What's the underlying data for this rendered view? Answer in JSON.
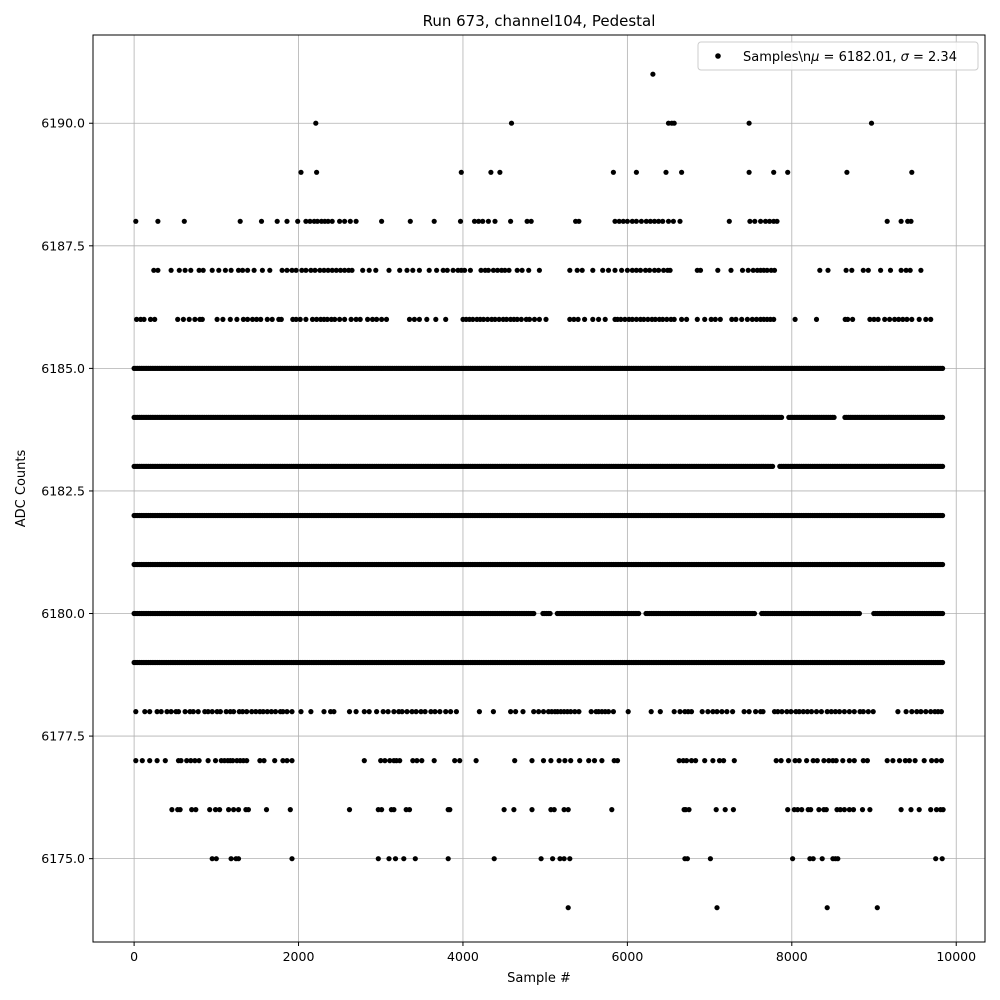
{
  "chart_data": {
    "type": "scatter",
    "title": "Run 673, channel104, Pedestal",
    "xlabel": "Sample #",
    "ylabel": "ADC Counts",
    "xlim": [
      -500,
      10350
    ],
    "ylim": [
      6173.3,
      6191.8
    ],
    "xticks": [
      0,
      2000,
      4000,
      6000,
      8000,
      10000
    ],
    "xtick_labels": [
      "0",
      "2000",
      "4000",
      "6000",
      "8000",
      "10000"
    ],
    "yticks": [
      6175.0,
      6177.5,
      6180.0,
      6182.5,
      6185.0,
      6187.5,
      6190.0
    ],
    "ytick_labels": [
      "6175.0",
      "6177.5",
      "6180.0",
      "6182.5",
      "6185.0",
      "6187.5",
      "6190.0"
    ],
    "grid": true,
    "legend_position": "top-right",
    "marker_color": "#000000",
    "grid_color": "#b0b0b0",
    "series": [
      {
        "name": "Samples\\n$\\mu$ = 6182.01, $\\sigma$ = 2.34",
        "legend_prefix": "Samples\\n",
        "legend_mu": "μ",
        "legend_mid": " = 6182.01, ",
        "legend_sigma": "σ",
        "legend_suffix": " = 2.34",
        "n_samples": 9850,
        "x_range": [
          0,
          9849
        ],
        "mean": 6182.01,
        "std": 2.34,
        "level_x_samples": {
          "6174": [
            5280,
            7090,
            8430,
            9040
          ],
          "6175": [
            950,
            1000,
            1180,
            1240,
            1270,
            1920,
            2970,
            3100,
            3180,
            3280,
            3420,
            3820,
            4380,
            4950,
            5090,
            5180,
            5230,
            5300,
            6700,
            6730,
            7010,
            8010,
            8220,
            8260,
            8370,
            8500,
            8530,
            8560,
            9750,
            9830
          ],
          "6176": [
            460,
            530,
            560,
            700,
            750,
            920,
            990,
            1040,
            1150,
            1210,
            1270,
            1360,
            1390,
            1610,
            1900,
            2620,
            2970,
            3010,
            3130,
            3160,
            3310,
            3350,
            3820,
            3840,
            4500,
            4620,
            4840,
            5070,
            5110,
            5230,
            5280,
            5810,
            6690,
            6710,
            6750,
            7080,
            7190,
            7290,
            7950,
            8030,
            8070,
            8120,
            8200,
            8230,
            8330,
            8390,
            8420,
            8550,
            8590,
            8640,
            8700,
            8750,
            8860,
            8950,
            9330,
            9450,
            9550,
            9690,
            9760,
            9810,
            9840
          ],
          "6177": [
            20,
            100,
            190,
            280,
            380,
            540,
            570,
            640,
            690,
            740,
            790,
            900,
            990,
            1060,
            1100,
            1140,
            1170,
            1200,
            1250,
            1290,
            1330,
            1370,
            1530,
            1580,
            1710,
            1810,
            1860,
            1920,
            2800,
            3000,
            3050,
            3110,
            3160,
            3190,
            3230,
            3390,
            3440,
            3500,
            3650,
            3900,
            3960,
            4160,
            4630,
            4840,
            4980,
            5070,
            5170,
            5240,
            5310,
            5420,
            5530,
            5600,
            5690,
            5840,
            5880,
            6630,
            6680,
            6720,
            6780,
            6830,
            6940,
            7040,
            7120,
            7170,
            7300,
            7810,
            7870,
            7960,
            8040,
            8090,
            8180,
            8260,
            8310,
            8390,
            8450,
            8500,
            8540,
            8620,
            8700,
            8760,
            8870,
            8920,
            9160,
            9230,
            9310,
            9380,
            9430,
            9500,
            9610,
            9700,
            9760,
            9820
          ],
          "6178": [
            20,
            130,
            190,
            280,
            330,
            400,
            450,
            510,
            540,
            620,
            680,
            720,
            780,
            860,
            900,
            950,
            1010,
            1050,
            1120,
            1170,
            1210,
            1280,
            1320,
            1370,
            1430,
            1480,
            1530,
            1570,
            1620,
            1670,
            1720,
            1780,
            1810,
            1860,
            1920,
            2030,
            2150,
            2310,
            2390,
            2430,
            2620,
            2700,
            2800,
            2860,
            2950,
            3030,
            3090,
            3160,
            3220,
            3260,
            3320,
            3380,
            3430,
            3490,
            3540,
            3610,
            3660,
            3720,
            3790,
            3850,
            3920,
            4200,
            4370,
            4580,
            4640,
            4730,
            4860,
            4920,
            4980,
            5040,
            5080,
            5120,
            5150,
            5190,
            5230,
            5270,
            5310,
            5360,
            5410,
            5560,
            5620,
            5650,
            5690,
            5730,
            5770,
            5830,
            6010,
            6290,
            6400,
            6570,
            6640,
            6700,
            6740,
            6780,
            6910,
            6980,
            7040,
            7090,
            7150,
            7210,
            7280,
            7420,
            7480,
            7560,
            7620,
            7650,
            7790,
            7830,
            7880,
            7940,
            7990,
            8050,
            8090,
            8140,
            8190,
            8240,
            8300,
            8360,
            8430,
            8480,
            8530,
            8580,
            8640,
            8700,
            8760,
            8830,
            8870,
            8930,
            8990,
            9290,
            9390,
            9460,
            9520,
            9570,
            9630,
            9690,
            9740,
            9780,
            9820
          ],
          "6186": [
            30,
            80,
            120,
            200,
            250,
            530,
            600,
            670,
            740,
            800,
            830,
            1010,
            1080,
            1170,
            1250,
            1330,
            1380,
            1440,
            1490,
            1540,
            1620,
            1680,
            1760,
            1790,
            1930,
            1970,
            2020,
            2090,
            2170,
            2220,
            2270,
            2310,
            2350,
            2400,
            2440,
            2500,
            2560,
            2640,
            2700,
            2750,
            2840,
            2900,
            2950,
            3010,
            3070,
            3350,
            3410,
            3470,
            3560,
            3670,
            3790,
            4000,
            4040,
            4080,
            4120,
            4170,
            4210,
            4250,
            4300,
            4350,
            4390,
            4440,
            4490,
            4530,
            4580,
            4620,
            4660,
            4710,
            4770,
            4810,
            4870,
            4930,
            5010,
            5300,
            5350,
            5400,
            5480,
            5580,
            5650,
            5730,
            5850,
            5880,
            5920,
            5970,
            6020,
            6060,
            6110,
            6160,
            6200,
            6250,
            6300,
            6340,
            6390,
            6430,
            6480,
            6530,
            6570,
            6660,
            6720,
            6850,
            6940,
            7020,
            7070,
            7130,
            7270,
            7320,
            7390,
            7460,
            7520,
            7570,
            7620,
            7660,
            7700,
            7740,
            7780,
            8040,
            8300,
            8650,
            8680,
            8740,
            8950,
            9000,
            9050,
            9130,
            9190,
            9250,
            9300,
            9350,
            9400,
            9460,
            9550,
            9630,
            9690
          ],
          "6187": [
            240,
            290,
            450,
            550,
            620,
            690,
            790,
            840,
            950,
            1030,
            1110,
            1180,
            1270,
            1320,
            1380,
            1460,
            1560,
            1650,
            1800,
            1860,
            1920,
            1970,
            2040,
            2090,
            2150,
            2200,
            2260,
            2310,
            2360,
            2410,
            2460,
            2510,
            2560,
            2610,
            2650,
            2780,
            2860,
            2940,
            3100,
            3230,
            3320,
            3390,
            3470,
            3590,
            3680,
            3760,
            3810,
            3880,
            3940,
            3980,
            4020,
            4090,
            4220,
            4270,
            4310,
            4370,
            4420,
            4470,
            4510,
            4560,
            4660,
            4720,
            4800,
            4930,
            5300,
            5390,
            5450,
            5580,
            5700,
            5770,
            5850,
            5930,
            6000,
            6060,
            6110,
            6160,
            6220,
            6270,
            6330,
            6380,
            6440,
            6490,
            6520,
            6850,
            6890,
            7100,
            7260,
            7400,
            7470,
            7530,
            7580,
            7620,
            7660,
            7700,
            7750,
            7790,
            8340,
            8440,
            8660,
            8730,
            8870,
            8930,
            9080,
            9200,
            9330,
            9390,
            9440,
            9570
          ],
          "6188": [
            20,
            290,
            610,
            1290,
            1550,
            1740,
            1860,
            1990,
            2090,
            2140,
            2190,
            2230,
            2280,
            2320,
            2360,
            2410,
            2500,
            2560,
            2630,
            2700,
            3010,
            3360,
            3650,
            3970,
            4140,
            4190,
            4240,
            4310,
            4390,
            4580,
            4780,
            4830,
            5370,
            5410,
            5850,
            5900,
            5950,
            6000,
            6060,
            6110,
            6170,
            6230,
            6280,
            6330,
            6380,
            6430,
            6500,
            6560,
            6640,
            7240,
            7490,
            7550,
            7620,
            7680,
            7730,
            7780,
            7820,
            9160,
            9330,
            9410,
            9450
          ],
          "6189": [
            2030,
            2220,
            3980,
            4340,
            4450,
            5830,
            6110,
            6470,
            6660,
            7480,
            7780,
            7950,
            8670,
            9460
          ],
          "6190": [
            2210,
            4590,
            6500,
            6540,
            6570,
            7480,
            8970
          ],
          "6191": [
            6310
          ]
        },
        "dense_levels": [
          6179,
          6180,
          6181,
          6182,
          6183,
          6184,
          6185
        ],
        "dense_gaps": {
          "6179": [],
          "6180": [
            [
              4880,
              4960
            ],
            [
              5070,
              5130
            ],
            [
              6160,
              6220
            ],
            [
              7550,
              7620
            ],
            [
              8840,
              8980
            ]
          ],
          "6181": [],
          "6182": [],
          "6183": [
            [
              7780,
              7840
            ]
          ],
          "6184": [
            [
              7890,
              7960
            ],
            [
              8530,
              8640
            ]
          ],
          "6185": []
        }
      }
    ]
  }
}
